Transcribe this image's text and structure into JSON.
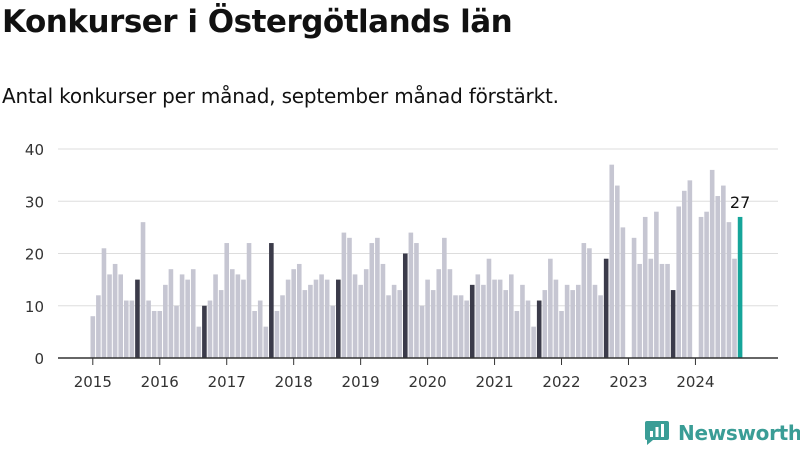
{
  "header": {
    "title": "Konkurser i Östergötlands län",
    "subtitle": "Antal konkurser per månad, september månad förstärkt."
  },
  "brand": {
    "name": "Newsworthy",
    "color": "#3a9d96"
  },
  "colors": {
    "regular": "#c6c6d2",
    "september": "#3b3b4a",
    "latest": "#16a59a",
    "grid": "#dddddd",
    "axis": "#333333"
  },
  "chart_data": {
    "type": "bar",
    "title": "Konkurser i Östergötlands län",
    "subtitle": "Antal konkurser per månad, september månad förstärkt.",
    "xlabel": "",
    "ylabel": "",
    "ylim": [
      0,
      40
    ],
    "yticks": [
      0,
      10,
      20,
      30,
      40
    ],
    "xticks": [
      "2015",
      "2016",
      "2017",
      "2018",
      "2019",
      "2020",
      "2021",
      "2022",
      "2023",
      "2024"
    ],
    "grid": true,
    "highlight": "september",
    "start": "2015-01",
    "values": [
      8,
      12,
      21,
      16,
      18,
      16,
      11,
      11,
      15,
      26,
      11,
      9,
      9,
      14,
      17,
      10,
      16,
      15,
      17,
      6,
      10,
      11,
      16,
      13,
      22,
      17,
      16,
      15,
      22,
      9,
      11,
      6,
      22,
      9,
      12,
      15,
      17,
      18,
      13,
      14,
      15,
      16,
      15,
      10,
      15,
      24,
      23,
      16,
      14,
      17,
      22,
      23,
      18,
      12,
      14,
      13,
      20,
      24,
      22,
      10,
      15,
      13,
      17,
      23,
      17,
      12,
      12,
      11,
      14,
      16,
      14,
      19,
      15,
      15,
      13,
      16,
      9,
      14,
      11,
      6,
      11,
      13,
      19,
      15,
      9,
      14,
      13,
      14,
      22,
      21,
      14,
      12,
      19,
      37,
      33,
      25,
      null,
      23,
      18,
      27,
      19,
      28,
      18,
      18,
      13,
      29,
      32,
      34,
      null,
      27,
      28,
      36,
      31,
      33,
      26,
      19,
      27
    ],
    "latest_label": "27"
  }
}
